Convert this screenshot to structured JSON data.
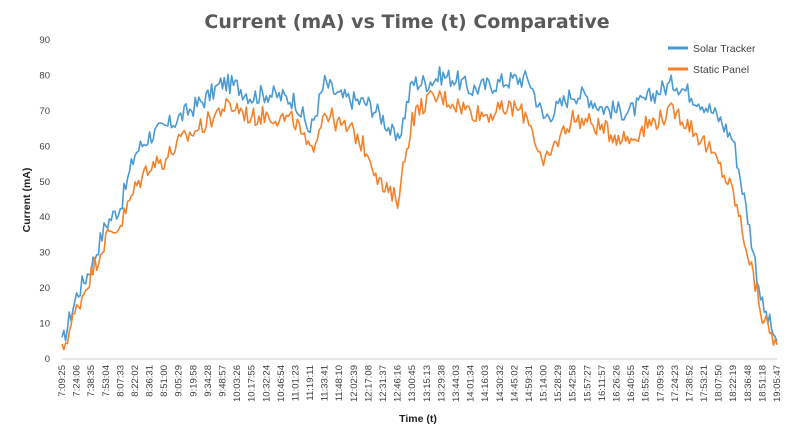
{
  "chart_data": {
    "type": "line",
    "title": "Current (mA) vs Time (t) Comparative",
    "xlabel": "Time (t)",
    "ylabel": "Current (mA)",
    "ylim": [
      0,
      90
    ],
    "yticks": [
      0,
      10,
      20,
      30,
      40,
      50,
      60,
      70,
      80,
      90
    ],
    "grid": false,
    "legend": "top-right",
    "x": [
      "7:09:25",
      "7:24:06",
      "7:38:35",
      "7:53:04",
      "8:07:33",
      "8:22:02",
      "8:36:31",
      "8:51:00",
      "9:05:29",
      "9:19:58",
      "9:34:28",
      "9:48:57",
      "10:03:26",
      "10:17:55",
      "10:32:24",
      "10:46:54",
      "11:01:23",
      "11:19:11",
      "11:33:41",
      "11:48:10",
      "12:02:39",
      "12:17:08",
      "12:31:37",
      "12:46:16",
      "13:00:45",
      "13:15:13",
      "13:29:38",
      "13:44:03",
      "14:01:34",
      "14:16:03",
      "14:30:32",
      "14:45:02",
      "14:59:31",
      "15:14:00",
      "15:28:29",
      "15:42:58",
      "15:57:27",
      "16:11:57",
      "16:26:26",
      "16:40:55",
      "16:55:24",
      "17:09:53",
      "17:24:23",
      "17:38:52",
      "17:53:21",
      "18:07:50",
      "18:22:19",
      "18:36:48",
      "18:51:18",
      "19:05:47"
    ],
    "series": [
      {
        "name": "Solar Tracker",
        "color": "#4a9bd4",
        "values": [
          4,
          18,
          26,
          38,
          43,
          58,
          63,
          65,
          68,
          71,
          74,
          78,
          77,
          74,
          75,
          74,
          73,
          64,
          78,
          74,
          73,
          72,
          68,
          61,
          78,
          78,
          80,
          79,
          76,
          77,
          78,
          79,
          79,
          68,
          71,
          75,
          74,
          71,
          70,
          70,
          73,
          76,
          78,
          75,
          72,
          68,
          62,
          40,
          15,
          5
        ]
      },
      {
        "name": "Static Panel",
        "color": "#f5822a",
        "values": [
          2,
          14,
          24,
          34,
          38,
          48,
          55,
          56,
          61,
          64,
          67,
          71,
          71,
          68,
          69,
          68,
          67,
          58,
          70,
          66,
          64,
          58,
          48,
          45,
          68,
          73,
          74,
          72,
          70,
          69,
          70,
          71,
          68,
          54,
          62,
          68,
          67,
          65,
          63,
          62,
          66,
          68,
          70,
          66,
          61,
          55,
          47,
          30,
          12,
          4
        ]
      }
    ]
  }
}
